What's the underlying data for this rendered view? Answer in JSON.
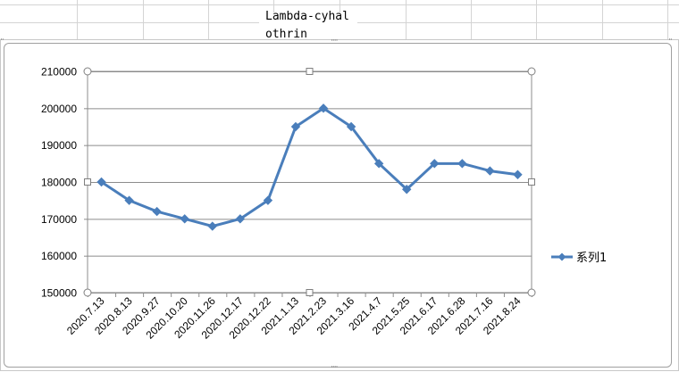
{
  "sheet_cell": {
    "text": "Lambda-cyhalothrin"
  },
  "chart_data": {
    "type": "line",
    "title": "",
    "xlabel": "",
    "ylabel": "",
    "categories": [
      "2020.7.13",
      "2020.8.13",
      "2020.9.27",
      "2020.10.20",
      "2020.11.26",
      "2020.12.17",
      "2020.12.22",
      "2021.1.13",
      "2021.2.23",
      "2021.3.16",
      "2021.4.7",
      "2021.5.25",
      "2021.6.17",
      "2021.6.28",
      "2021.7.16",
      "2021.8.24"
    ],
    "series": [
      {
        "name": "系列1",
        "values": [
          180000,
          175000,
          172000,
          170000,
          168000,
          170000,
          175000,
          195000,
          200000,
          195000,
          185000,
          178000,
          185000,
          185000,
          183000,
          182000
        ],
        "color": "#4a7ebb"
      }
    ],
    "ylim": [
      150000,
      210000
    ],
    "yticks": [
      "150000",
      "160000",
      "170000",
      "180000",
      "190000",
      "200000",
      "210000"
    ],
    "grid": true,
    "legend_position": "right"
  }
}
